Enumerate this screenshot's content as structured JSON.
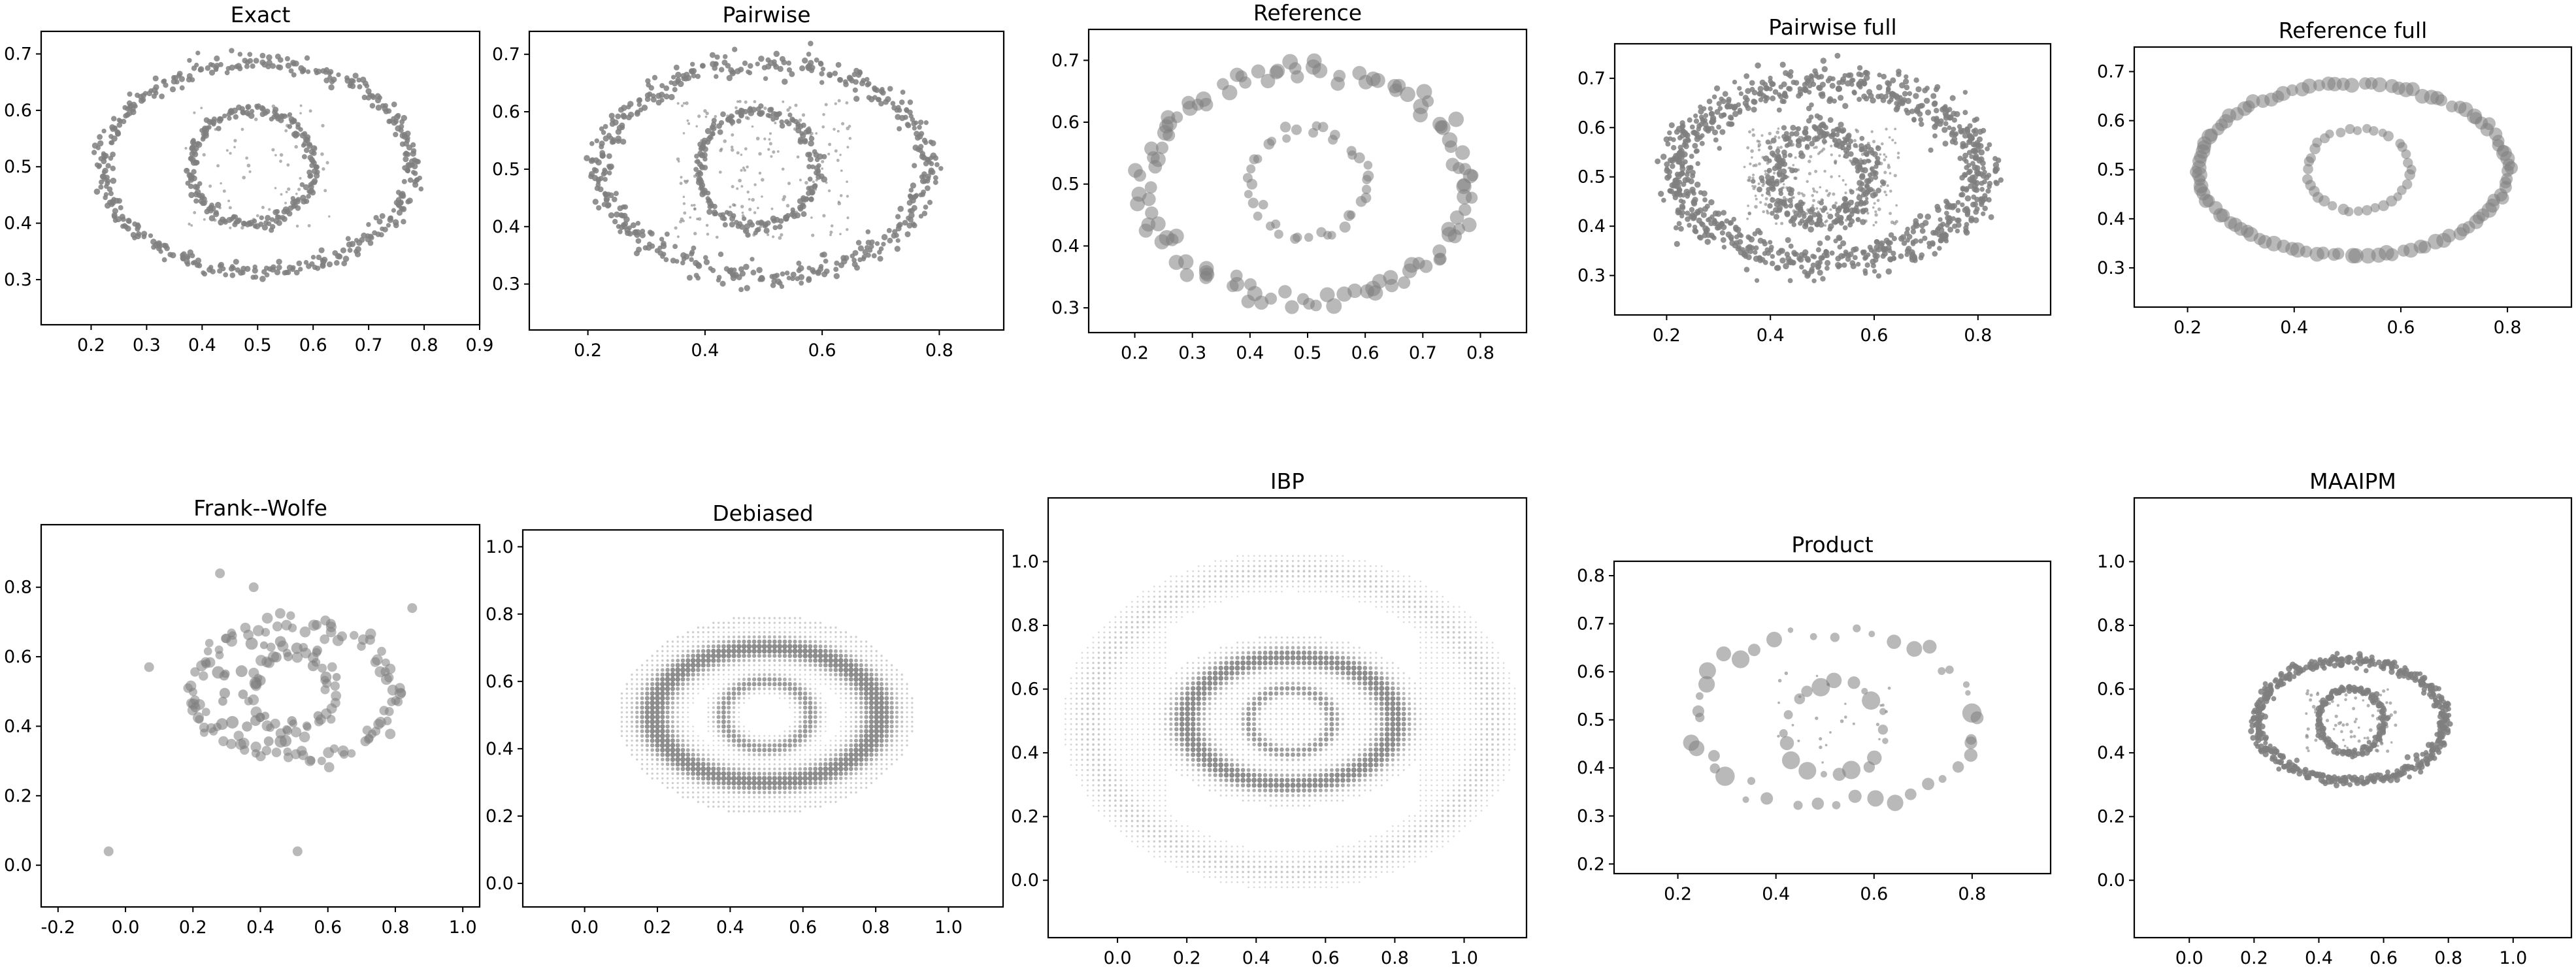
{
  "figure": {
    "marker_color": "#7f7f7f",
    "frame_color": "#000000",
    "background": "#ffffff"
  },
  "chart_data": [
    {
      "type": "scatter",
      "title": "Exact",
      "xlabel": "",
      "ylabel": "",
      "xlim": [
        0.11,
        0.9
      ],
      "ylim": [
        0.22,
        0.74
      ],
      "xticks": [
        "0.2",
        "0.3",
        "0.4",
        "0.5",
        "0.6",
        "0.7",
        "0.8",
        "0.9"
      ],
      "yticks": [
        "0.3",
        "0.4",
        "0.5",
        "0.6",
        "0.7"
      ],
      "grid": false,
      "series": [
        {
          "shape": "ring",
          "center": [
            0.5,
            0.5
          ],
          "radius": [
            0.28,
            0.185
          ],
          "count": 420,
          "jitter": 0.008,
          "marker_size": "small"
        },
        {
          "shape": "ring",
          "center": [
            0.49,
            0.5
          ],
          "radius": [
            0.11,
            0.1
          ],
          "count": 220,
          "jitter": 0.006,
          "marker_size": "small"
        },
        {
          "shape": "cloud",
          "center": [
            0.5,
            0.5
          ],
          "spread": [
            0.13,
            0.11
          ],
          "count": 70,
          "marker_size": "tiny"
        }
      ]
    },
    {
      "type": "scatter",
      "title": "Pairwise",
      "xlabel": "",
      "ylabel": "",
      "xlim": [
        0.1,
        0.91
      ],
      "ylim": [
        0.22,
        0.74
      ],
      "xticks": [
        "0.2",
        "0.4",
        "0.6",
        "0.8"
      ],
      "yticks": [
        "0.3",
        "0.4",
        "0.5",
        "0.6",
        "0.7"
      ],
      "grid": false,
      "series": [
        {
          "shape": "ring",
          "center": [
            0.5,
            0.5
          ],
          "radius": [
            0.28,
            0.185
          ],
          "count": 480,
          "jitter": 0.012,
          "marker_size": "small"
        },
        {
          "shape": "ring",
          "center": [
            0.49,
            0.5
          ],
          "radius": [
            0.1,
            0.1
          ],
          "count": 200,
          "jitter": 0.006,
          "marker_size": "small"
        },
        {
          "shape": "cloud",
          "center": [
            0.5,
            0.5
          ],
          "spread": [
            0.15,
            0.12
          ],
          "count": 180,
          "marker_size": "tiny"
        }
      ]
    },
    {
      "type": "scatter",
      "title": "Reference",
      "xlabel": "",
      "ylabel": "",
      "xlim": [
        0.12,
        0.88
      ],
      "ylim": [
        0.26,
        0.75
      ],
      "xticks": [
        "0.2",
        "0.3",
        "0.4",
        "0.5",
        "0.6",
        "0.7",
        "0.8"
      ],
      "yticks": [
        "0.3",
        "0.4",
        "0.5",
        "0.6",
        "0.7"
      ],
      "grid": false,
      "series": [
        {
          "shape": "ring",
          "center": [
            0.5,
            0.5
          ],
          "radius": [
            0.28,
            0.185
          ],
          "count": 120,
          "jitter": 0.01,
          "marker_size": "large"
        },
        {
          "shape": "ring",
          "center": [
            0.5,
            0.5
          ],
          "radius": [
            0.1,
            0.085
          ],
          "count": 40,
          "jitter": 0.005,
          "marker_size": "medium"
        }
      ]
    },
    {
      "type": "scatter",
      "title": "Pairwise full",
      "xlabel": "",
      "ylabel": "",
      "xlim": [
        0.1,
        0.94
      ],
      "ylim": [
        0.22,
        0.77
      ],
      "xticks": [
        "0.2",
        "0.4",
        "0.6",
        "0.8"
      ],
      "yticks": [
        "0.3",
        "0.4",
        "0.5",
        "0.6",
        "0.7"
      ],
      "grid": false,
      "series": [
        {
          "shape": "ring",
          "center": [
            0.51,
            0.51
          ],
          "radius": [
            0.29,
            0.18
          ],
          "count": 900,
          "jitter": 0.02,
          "marker_size": "small"
        },
        {
          "shape": "ring",
          "center": [
            0.5,
            0.5
          ],
          "radius": [
            0.09,
            0.09
          ],
          "count": 300,
          "jitter": 0.015,
          "marker_size": "small"
        },
        {
          "shape": "cloud",
          "center": [
            0.5,
            0.5
          ],
          "spread": [
            0.15,
            0.1
          ],
          "count": 260,
          "marker_size": "tiny"
        }
      ]
    },
    {
      "type": "scatter",
      "title": "Reference full",
      "xlabel": "",
      "ylabel": "",
      "xlim": [
        0.1,
        0.92
      ],
      "ylim": [
        0.22,
        0.75
      ],
      "xticks": [
        "0.2",
        "0.4",
        "0.6",
        "0.8"
      ],
      "yticks": [
        "0.3",
        "0.4",
        "0.5",
        "0.6",
        "0.7"
      ],
      "grid": false,
      "series": [
        {
          "shape": "ring",
          "center": [
            0.51,
            0.5
          ],
          "radius": [
            0.29,
            0.175
          ],
          "count": 110,
          "jitter": 0.003,
          "marker_size": "large"
        },
        {
          "shape": "ring",
          "center": [
            0.52,
            0.5
          ],
          "radius": [
            0.095,
            0.085
          ],
          "count": 36,
          "jitter": 0.002,
          "marker_size": "medium"
        }
      ]
    },
    {
      "type": "scatter",
      "title": "Frank--Wolfe",
      "xlabel": "",
      "ylabel": "",
      "xlim": [
        -0.25,
        1.05
      ],
      "ylim": [
        -0.12,
        0.98
      ],
      "xticks": [
        "-0.2",
        "0.0",
        "0.2",
        "0.4",
        "0.6",
        "0.8",
        "1.0"
      ],
      "yticks": [
        "0.0",
        "0.2",
        "0.4",
        "0.6",
        "0.8"
      ],
      "grid": false,
      "series": [
        {
          "shape": "ring",
          "center": [
            0.5,
            0.5
          ],
          "radius": [
            0.3,
            0.19
          ],
          "count": 110,
          "jitter": 0.015,
          "marker_size": "medium"
        },
        {
          "shape": "ring",
          "center": [
            0.5,
            0.5
          ],
          "radius": [
            0.12,
            0.12
          ],
          "count": 45,
          "jitter": 0.01,
          "marker_size": "medium"
        },
        {
          "shape": "cloud",
          "center": [
            0.45,
            0.5
          ],
          "spread": [
            0.18,
            0.15
          ],
          "count": 30,
          "marker_size": "medium"
        },
        {
          "shape": "points",
          "points": [
            [
              -0.05,
              0.04
            ],
            [
              0.51,
              0.04
            ],
            [
              0.28,
              0.84
            ],
            [
              0.38,
              0.8
            ],
            [
              0.85,
              0.74
            ],
            [
              0.07,
              0.57
            ]
          ],
          "marker_size": "medium"
        }
      ]
    },
    {
      "type": "scatter",
      "title": "Debiased",
      "xlabel": "",
      "ylabel": "",
      "xlim": [
        -0.17,
        1.15
      ],
      "ylim": [
        -0.07,
        1.05
      ],
      "xticks": [
        "0.0",
        "0.2",
        "0.4",
        "0.6",
        "0.8",
        "1.0"
      ],
      "yticks": [
        "0.0",
        "0.2",
        "0.4",
        "0.6",
        "0.8",
        "1.0"
      ],
      "grid": false,
      "series": [
        {
          "shape": "grid_blob",
          "center": [
            0.5,
            0.5
          ],
          "radius": [
            0.31,
            0.2
          ],
          "ring_width": 0.05,
          "inner": [
            0.12,
            0.1
          ],
          "halo": [
            0.4,
            0.29
          ],
          "marker_size": "small"
        }
      ]
    },
    {
      "type": "scatter",
      "title": "IBP",
      "xlabel": "",
      "ylabel": "",
      "xlim": [
        -0.2,
        1.18
      ],
      "ylim": [
        -0.18,
        1.2
      ],
      "xticks": [
        "0.0",
        "0.2",
        "0.4",
        "0.6",
        "0.8",
        "1.0"
      ],
      "yticks": [
        "0.0",
        "0.2",
        "0.4",
        "0.6",
        "0.8",
        "1.0"
      ],
      "grid": false,
      "series": [
        {
          "shape": "grid_field",
          "center": [
            0.5,
            0.5
          ],
          "radius": [
            0.3,
            0.2
          ],
          "inner": [
            0.12,
            0.1
          ],
          "outer": [
            0.58,
            0.47
          ],
          "marker_size": "small"
        }
      ]
    },
    {
      "type": "scatter",
      "title": "Product",
      "xlabel": "",
      "ylabel": "",
      "xlim": [
        0.07,
        0.96
      ],
      "ylim": [
        0.18,
        0.83
      ],
      "xticks": [
        "0.2",
        "0.4",
        "0.6",
        "0.8"
      ],
      "yticks": [
        "0.2",
        "0.3",
        "0.4",
        "0.5",
        "0.6",
        "0.7",
        "0.8"
      ],
      "grid": false,
      "series": [
        {
          "shape": "ring",
          "center": [
            0.52,
            0.5
          ],
          "radius": [
            0.29,
            0.18
          ],
          "count": 44,
          "jitter": 0.008,
          "marker_size": "varied"
        },
        {
          "shape": "ring",
          "center": [
            0.52,
            0.48
          ],
          "radius": [
            0.1,
            0.1
          ],
          "count": 20,
          "jitter": 0.005,
          "marker_size": "varied"
        },
        {
          "shape": "cloud",
          "center": [
            0.52,
            0.5
          ],
          "spread": [
            0.12,
            0.1
          ],
          "count": 25,
          "marker_size": "tiny"
        }
      ]
    },
    {
      "type": "scatter",
      "title": "MAAIPM",
      "xlabel": "",
      "ylabel": "",
      "xlim": [
        -0.17,
        1.18
      ],
      "ylim": [
        -0.18,
        1.2
      ],
      "xticks": [
        "0.0",
        "0.2",
        "0.4",
        "0.6",
        "0.8",
        "1.0"
      ],
      "yticks": [
        "0.0",
        "0.2",
        "0.4",
        "0.6",
        "0.8",
        "1.0"
      ],
      "grid": false,
      "series": [
        {
          "shape": "ring",
          "center": [
            0.5,
            0.5
          ],
          "radius": [
            0.29,
            0.19
          ],
          "count": 500,
          "jitter": 0.01,
          "marker_size": "small"
        },
        {
          "shape": "ring",
          "center": [
            0.5,
            0.5
          ],
          "radius": [
            0.1,
            0.1
          ],
          "count": 160,
          "jitter": 0.006,
          "marker_size": "small"
        },
        {
          "shape": "cloud",
          "center": [
            0.5,
            0.5
          ],
          "spread": [
            0.14,
            0.1
          ],
          "count": 90,
          "marker_size": "tiny"
        }
      ]
    }
  ]
}
